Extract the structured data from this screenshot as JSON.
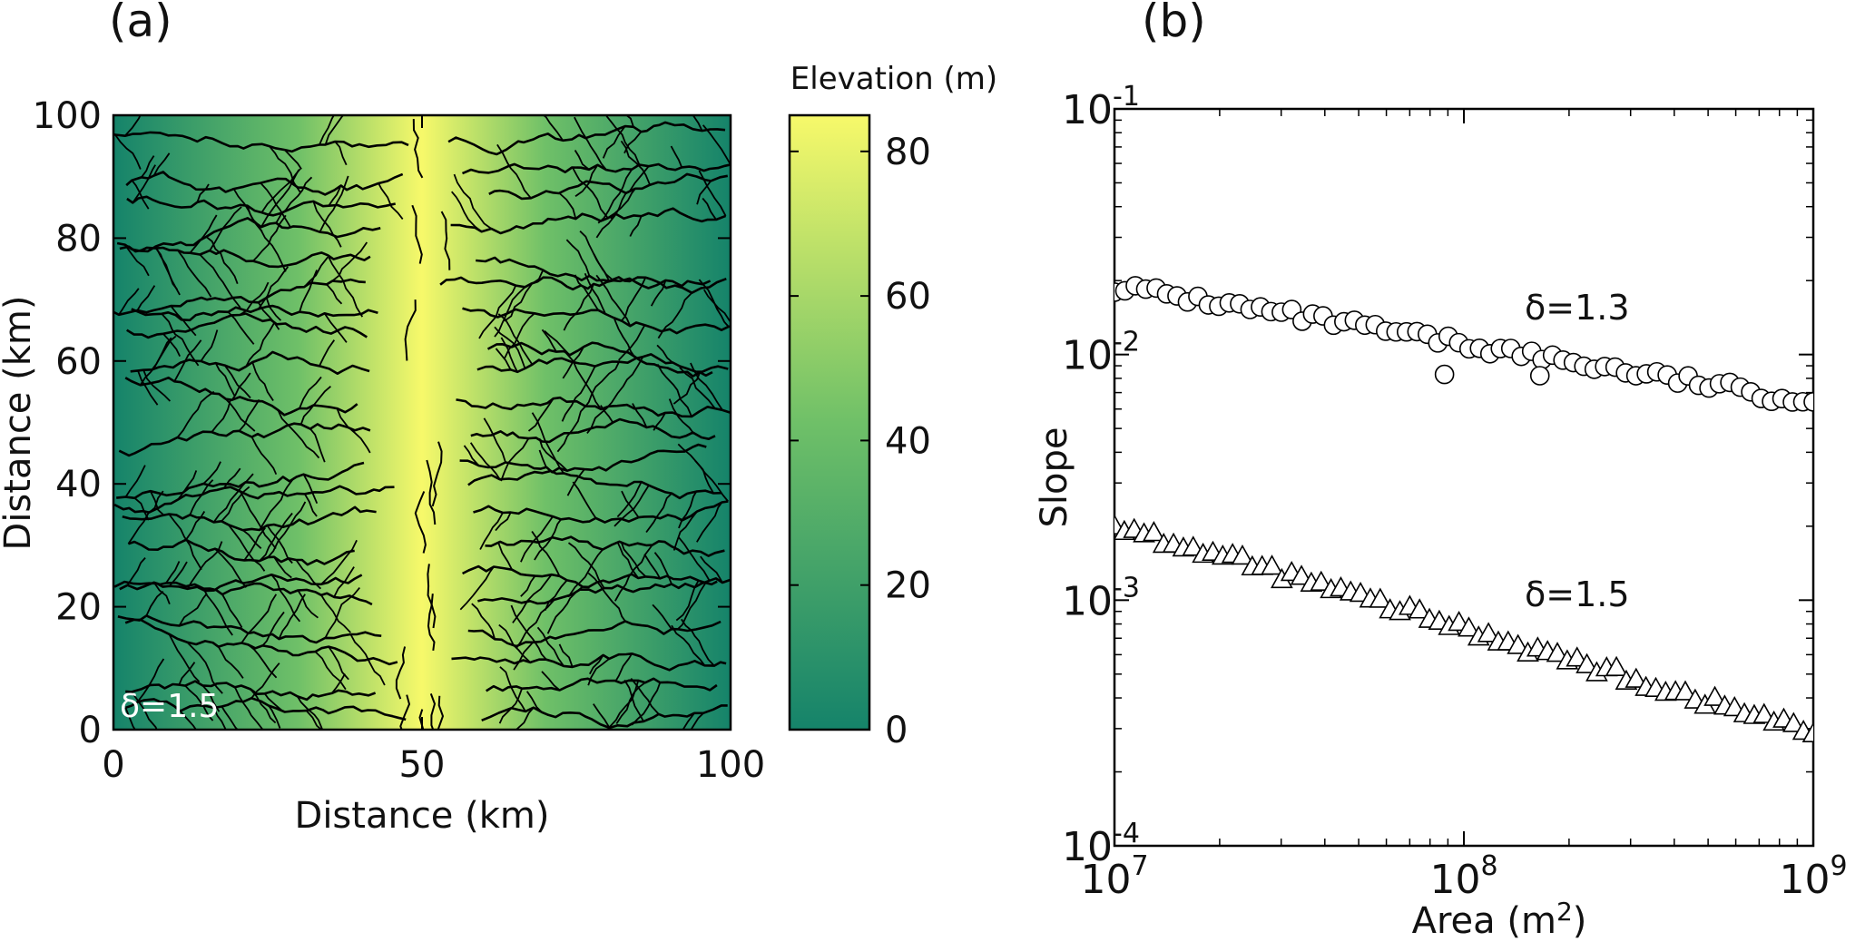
{
  "chart_data": [
    {
      "panel": "(a)",
      "type": "heatmap",
      "title": "",
      "xlabel": "Distance (km)",
      "ylabel": "Distance (km)",
      "xlim": [
        0,
        100
      ],
      "ylim": [
        0,
        100
      ],
      "xticks": [
        0,
        50,
        100
      ],
      "yticks": [
        0,
        20,
        40,
        60,
        80,
        100
      ],
      "annotation": "δ=1.5",
      "ridge_x_km": 50,
      "colorbar": {
        "label": "Elevation (m)",
        "range": [
          0,
          85
        ],
        "ticks": [
          0,
          20,
          40,
          60,
          80
        ],
        "colors": [
          "#15836a",
          "#6fc068",
          "#f7f96a"
        ]
      },
      "channel_color": "#000000"
    },
    {
      "panel": "(b)",
      "type": "scatter",
      "xlabel": "Area (m2)",
      "ylabel": "Slope",
      "xscale": "log",
      "yscale": "log",
      "xlim": [
        10000000,
        1000000000
      ],
      "ylim": [
        0.0001,
        0.1
      ],
      "xtick_exponents": [
        7,
        8,
        9
      ],
      "ytick_exponents": [
        -4,
        -3,
        -2,
        -1
      ],
      "series": [
        {
          "name": "δ=1.3",
          "marker": "circle",
          "x_log_range": [
            7.0,
            9.0
          ],
          "n_points": 68,
          "slope_start": 0.019,
          "slope_end": 0.0064,
          "outliers": [
            {
              "area": 88000000,
              "slope": 0.0083
            },
            {
              "area": 165000000,
              "slope": 0.0082
            }
          ]
        },
        {
          "name": "δ=1.5",
          "marker": "triangle",
          "x_log_range": [
            7.0,
            9.0
          ],
          "n_points": 72,
          "slope_start": 0.00205,
          "slope_end": 0.00029
        }
      ]
    }
  ]
}
